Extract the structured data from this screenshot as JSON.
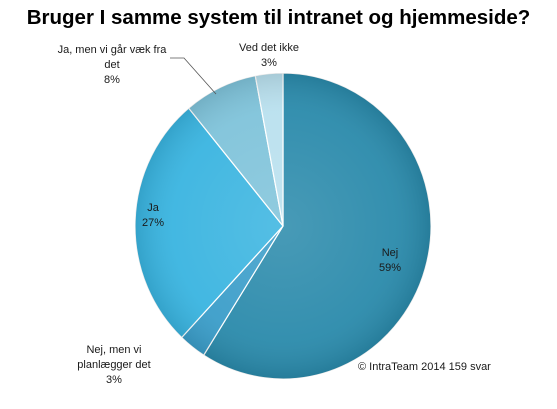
{
  "chart_data": {
    "type": "pie",
    "title": "Bruger I samme system til intranet og hjemmeside?",
    "slices": [
      {
        "label": "Nej",
        "value": 59,
        "value_label": "59%",
        "color": "#2a8aab"
      },
      {
        "label": "Nej, men vi planlægger det",
        "value": 3,
        "value_label": "3%",
        "color": "#3a9dc9"
      },
      {
        "label": "Ja",
        "value": 27,
        "value_label": "27%",
        "color": "#39b4e0"
      },
      {
        "label": "Ja, men vi går væk fra det",
        "value": 8,
        "value_label": "8%",
        "color": "#7fc3da"
      },
      {
        "label": "Ved det ikke",
        "value": 3,
        "value_label": "3%",
        "color": "#b9e0ee"
      }
    ],
    "legend": "none",
    "source": "© IntraTeam 2014 159 svar"
  }
}
